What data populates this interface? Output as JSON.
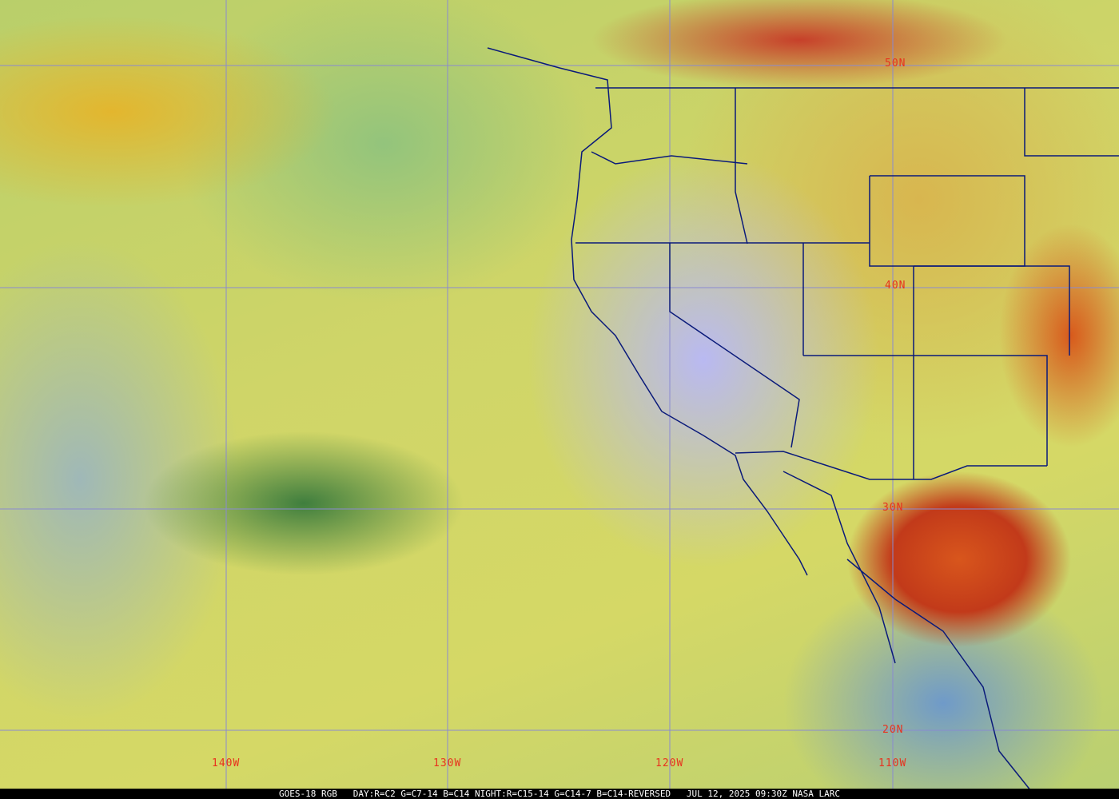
{
  "caption": "GOES-18 RGB   DAY:R=C2 G=C7-14 B=C14 NIGHT:R=C15-14 G=C14-7 B=C14-REVERSED   JUL 12, 2025 09:30Z NASA LARC",
  "grid": {
    "lat_labels": [
      "50N",
      "40N",
      "30N",
      "20N"
    ],
    "lon_labels": [
      "140W",
      "130W",
      "120W",
      "110W"
    ],
    "grid_color": "#8a8ad0",
    "label_color": "#e8321e",
    "boundary_color": "#0a1a7a"
  }
}
